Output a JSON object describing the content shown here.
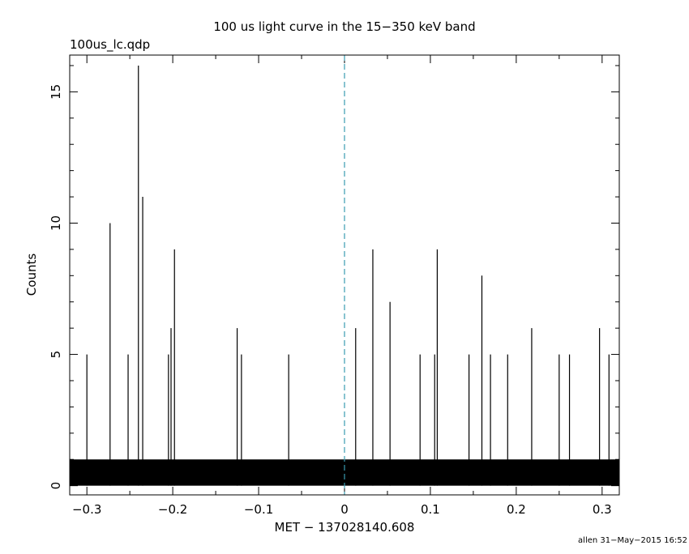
{
  "chart_data": {
    "type": "bar",
    "title": "100 us light curve in the 15−350 keV band",
    "subtitle": "100us_lc.qdp",
    "xlabel": "MET − 137028140.608",
    "ylabel": "Counts",
    "xlim": [
      -0.32,
      0.32
    ],
    "ylim": [
      -0.35,
      16.4
    ],
    "bin_width": 0.0001,
    "x_ticks": [
      -0.3,
      -0.2,
      -0.1,
      0,
      0.1,
      0.2,
      0.3
    ],
    "x_tick_labels": [
      "−0.3",
      "−0.2",
      "−0.1",
      "0",
      "0.1",
      "0.2",
      "0.3"
    ],
    "y_ticks": [
      0,
      5,
      10,
      15
    ],
    "y_tick_labels": [
      "0",
      "5",
      "10",
      "15"
    ],
    "trigger_line_x": 0,
    "trigger_line_color": "#3a9bb0",
    "baseline_level": 1,
    "notable_bins": [
      {
        "x": -0.24,
        "y": 16
      },
      {
        "x": -0.235,
        "y": 11
      },
      {
        "x": -0.273,
        "y": 10
      },
      {
        "x": -0.198,
        "y": 9
      },
      {
        "x": 0.033,
        "y": 9
      },
      {
        "x": 0.108,
        "y": 9
      },
      {
        "x": 0.053,
        "y": 7
      },
      {
        "x": 0.16,
        "y": 8
      },
      {
        "x": -0.202,
        "y": 6
      },
      {
        "x": -0.125,
        "y": 6
      },
      {
        "x": 0.013,
        "y": 6
      },
      {
        "x": 0.218,
        "y": 6
      },
      {
        "x": 0.297,
        "y": 6
      },
      {
        "x": -0.3,
        "y": 5
      },
      {
        "x": -0.252,
        "y": 5
      },
      {
        "x": -0.205,
        "y": 5
      },
      {
        "x": -0.12,
        "y": 5
      },
      {
        "x": -0.065,
        "y": 5
      },
      {
        "x": 0.088,
        "y": 5
      },
      {
        "x": 0.105,
        "y": 5
      },
      {
        "x": 0.145,
        "y": 5
      },
      {
        "x": 0.17,
        "y": 5
      },
      {
        "x": 0.19,
        "y": 5
      },
      {
        "x": 0.25,
        "y": 5
      },
      {
        "x": 0.262,
        "y": 5
      },
      {
        "x": 0.308,
        "y": 5
      }
    ]
  },
  "footer": {
    "stamp": "allen 31−May−2015 16:52"
  }
}
